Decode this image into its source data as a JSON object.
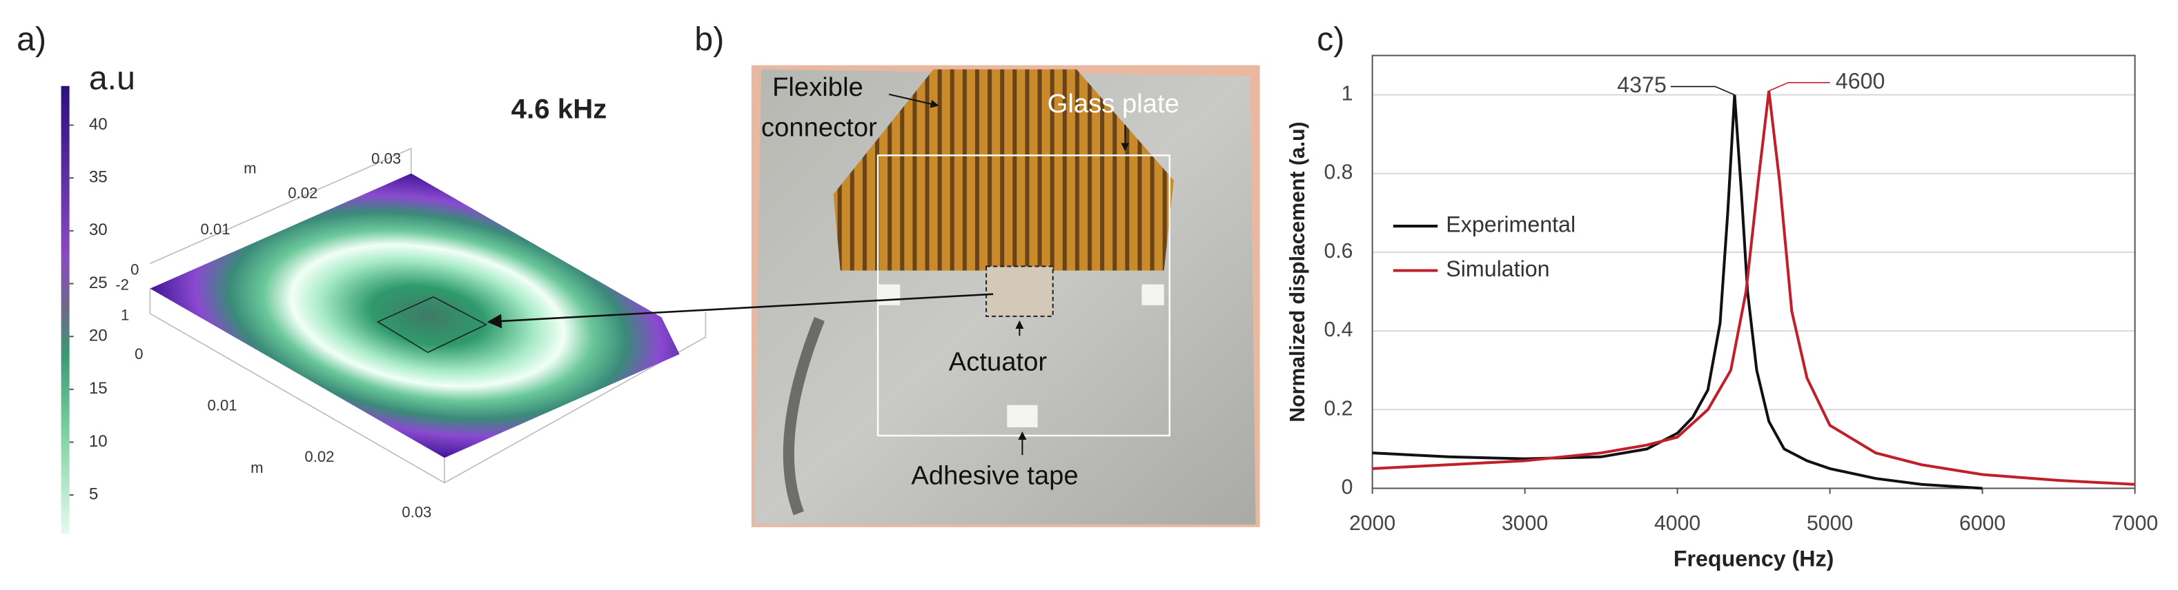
{
  "panels": {
    "a": {
      "label": "a)",
      "annotation": "4.6 kHz",
      "colorbar": {
        "title": "a.u",
        "ticks": [
          5,
          10,
          15,
          20,
          25,
          30,
          35,
          40
        ],
        "clim": [
          1.3,
          43.7
        ]
      },
      "back_ticks": [
        0.03,
        0.02,
        0.01,
        0
      ],
      "back_unit": "m",
      "z_ticks": [
        -2,
        1
      ],
      "front_ticks": [
        0,
        0.01,
        0.02,
        0.03
      ],
      "front_unit": "m"
    },
    "b": {
      "label": "b)",
      "flexible_connector": [
        "Flexible",
        "connector"
      ],
      "glass_plate": "Glass plate",
      "actuator": "Actuator",
      "adhesive_tape": "Adhesive tape"
    },
    "c": {
      "label": "c)"
    }
  },
  "chart_data": {
    "type": "line",
    "xlabel": "Frequency (Hz)",
    "ylabel": "Normalized displacement (a.u)",
    "xlim": [
      2000,
      7000
    ],
    "ylim": [
      0,
      1.1
    ],
    "xticks": [
      2000,
      3000,
      4000,
      5000,
      6000,
      7000
    ],
    "yticks": [
      0,
      0.2,
      0.4,
      0.6,
      0.8,
      1
    ],
    "grid": true,
    "legend": "left",
    "series": [
      {
        "name": "Experimental",
        "color": "#111111",
        "x": [
          2000,
          2500,
          3000,
          3500,
          3800,
          4000,
          4100,
          4200,
          4280,
          4330,
          4375,
          4420,
          4460,
          4520,
          4600,
          4700,
          4850,
          5000,
          5300,
          5600,
          6000
        ],
        "values": [
          0.09,
          0.08,
          0.075,
          0.08,
          0.1,
          0.14,
          0.18,
          0.25,
          0.42,
          0.7,
          1.0,
          0.75,
          0.5,
          0.3,
          0.17,
          0.1,
          0.07,
          0.05,
          0.025,
          0.01,
          0
        ]
      },
      {
        "name": "Simulation",
        "color": "#c0202a",
        "x": [
          2000,
          2500,
          3000,
          3500,
          3800,
          4000,
          4200,
          4350,
          4450,
          4530,
          4600,
          4670,
          4750,
          4850,
          5000,
          5300,
          5600,
          6000,
          6500,
          7000
        ],
        "values": [
          0.05,
          0.06,
          0.07,
          0.09,
          0.11,
          0.13,
          0.2,
          0.3,
          0.5,
          0.78,
          1.01,
          0.78,
          0.45,
          0.28,
          0.16,
          0.09,
          0.06,
          0.035,
          0.02,
          0.01
        ]
      }
    ],
    "annotations": [
      {
        "text": "4375",
        "x": 4375,
        "y": 1.0
      },
      {
        "text": "4600",
        "x": 4600,
        "y": 1.01
      }
    ]
  }
}
